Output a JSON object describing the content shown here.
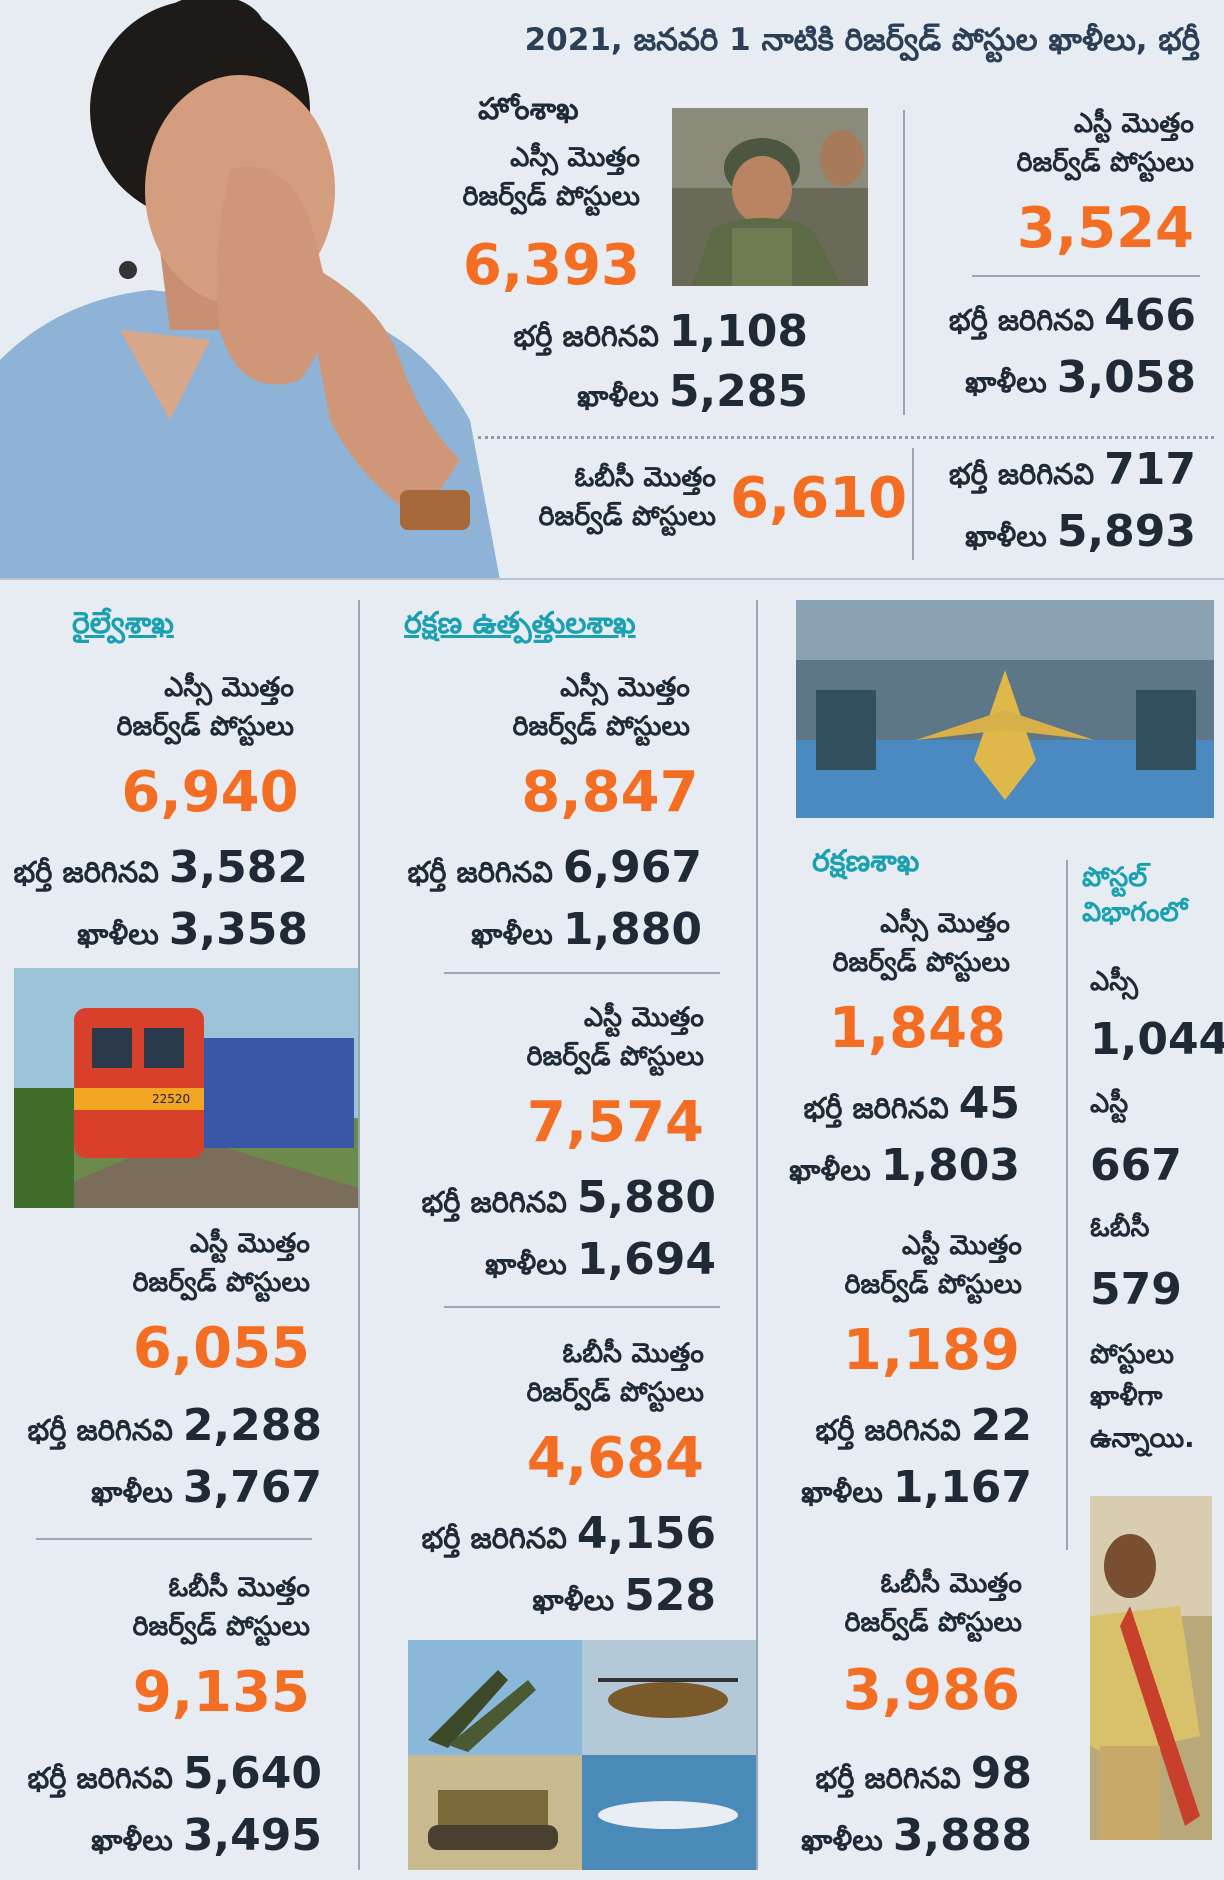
{
  "title": "2021, జనవరి 1 నాటికి రిజర్వ్‌డ్ పోస్టుల ఖాళీలు, భర్తీ",
  "labels": {
    "sc_total": "ఎస్సీ మొత్తం",
    "st_total": "ఎస్టీ మొత్తం",
    "obc_total": "ఓబీసీ మొత్తం",
    "reserved_posts": "రిజర్వ్‌డ్ పోస్టులు",
    "filled": "భర్తీ జరిగినవి",
    "vacant": "ఖాళీలు"
  },
  "home": {
    "name": "హోంశాఖ",
    "sc": {
      "total": "6,393",
      "filled": "1,108",
      "vacant": "5,285"
    },
    "st": {
      "total": "3,524",
      "filled": "466",
      "vacant": "3,058"
    },
    "obc": {
      "total": "6,610",
      "filled": "717",
      "vacant": "5,893"
    }
  },
  "railway": {
    "name": "రైల్వేశాఖ",
    "sc": {
      "total": "6,940",
      "filled": "3,582",
      "vacant": "3,358"
    },
    "st": {
      "total": "6,055",
      "filled": "2,288",
      "vacant": "3,767"
    },
    "obc": {
      "total": "9,135",
      "filled": "5,640",
      "vacant": "3,495"
    }
  },
  "defence_production": {
    "name": "రక్షణ ఉత్పత్తులశాఖ",
    "sc": {
      "total": "8,847",
      "filled": "6,967",
      "vacant": "1,880"
    },
    "st": {
      "total": "7,574",
      "filled": "5,880",
      "vacant": "1,694"
    },
    "obc": {
      "total": "4,684",
      "filled": "4,156",
      "vacant": "528"
    }
  },
  "defence": {
    "name": "రక్షణశాఖ",
    "sc": {
      "total": "1,848",
      "filled": "45",
      "vacant": "1,803"
    },
    "st": {
      "total": "1,189",
      "filled": "22",
      "vacant": "1,167"
    },
    "obc": {
      "total": "3,986",
      "filled": "98",
      "vacant": "3,888"
    }
  },
  "postal": {
    "name_line1": "పోస్టల్",
    "name_line2": "విభాగంలో",
    "sc_label": "ఎస్సీ",
    "sc": "1,044",
    "st_label": "ఎస్టీ",
    "st": "667",
    "obc_label": "ఓబీసీ",
    "obc": "579",
    "note_line1": "పోస్టులు",
    "note_line2": "ఖాళీగా",
    "note_line3": "ఉన్నాయి."
  },
  "train_plate": "22520",
  "colors": {
    "accent": "#f36d23",
    "heading": "#1aa0b0",
    "background": "#e6ecf1",
    "title": "#2b3f56"
  }
}
